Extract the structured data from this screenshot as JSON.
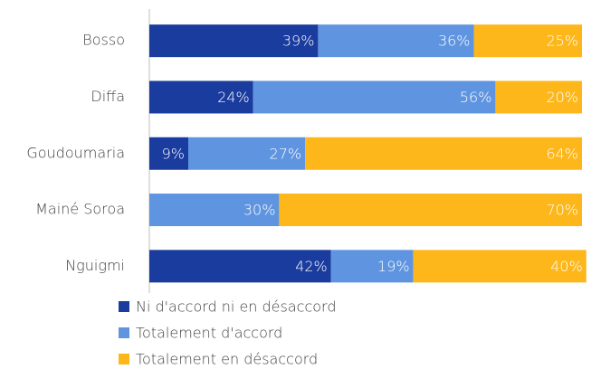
{
  "chart_data": {
    "type": "bar",
    "orientation": "horizontal",
    "stacked": true,
    "categories": [
      "Bosso",
      "Diffa",
      "Goudoumaria",
      "Mainé Soroa",
      "Nguigmi"
    ],
    "xlim": [
      0,
      100
    ],
    "series": [
      {
        "name": "Ni d'accord ni en désaccord",
        "color": "#1a3c9e",
        "values": [
          39,
          24,
          9,
          null,
          42
        ],
        "value_labels": [
          "39%",
          "24%",
          "9%",
          null,
          "42%"
        ]
      },
      {
        "name": "Totalement d'accord",
        "color": "#5f95e0",
        "values": [
          36,
          56,
          27,
          30,
          19
        ],
        "value_labels": [
          "36%",
          "56%",
          "27%",
          "30%",
          "19%"
        ]
      },
      {
        "name": "Totalement en désaccord",
        "color": "#fdb71a",
        "values": [
          25,
          20,
          64,
          70,
          40
        ],
        "value_labels": [
          "25%",
          "20%",
          "64%",
          "70%",
          "40%"
        ]
      }
    ],
    "legend": "bottom"
  }
}
